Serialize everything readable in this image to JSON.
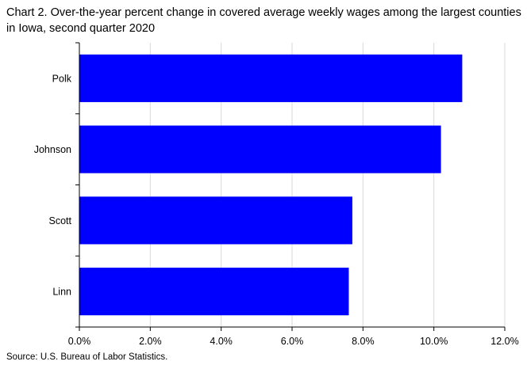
{
  "chart_data": {
    "type": "bar",
    "orientation": "horizontal",
    "title": "Chart 2. Over-the-year percent change in covered average weekly wages among the largest counties in Iowa, second quarter 2020",
    "categories": [
      "Polk",
      "Johnson",
      "Scott",
      "Linn"
    ],
    "values": [
      10.8,
      10.2,
      7.7,
      7.6
    ],
    "unit": "%",
    "xlim": [
      0,
      12
    ],
    "xticks": [
      0,
      2,
      4,
      6,
      8,
      10,
      12
    ],
    "xtick_labels": [
      "0.0%",
      "2.0%",
      "4.0%",
      "6.0%",
      "8.0%",
      "10.0%",
      "12.0%"
    ],
    "bar_color": "#0000ff",
    "grid": "vertical",
    "legend": "none"
  },
  "source": "Source: U.S. Bureau of Labor Statistics."
}
